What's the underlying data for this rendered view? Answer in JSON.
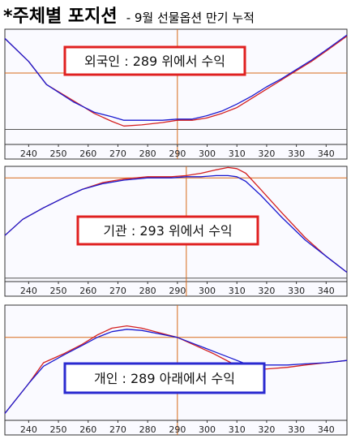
{
  "title": {
    "main": "*주체별 포지션",
    "sub": "- 9월 선물옵션 만기 누적"
  },
  "colors": {
    "series_a": "#d42020",
    "series_b": "#1a1ad0",
    "ref_line": "#d86a1a",
    "axis": "#333333",
    "plot_bg": "#fafaff",
    "box_red": "#e02020",
    "box_blue": "#2a2ad0"
  },
  "chart_data": [
    {
      "type": "line",
      "id": "foreign",
      "annotation": "외국인 : 289 위에서 수익",
      "annotation_style": "red",
      "xlim": [
        232,
        347
      ],
      "ylim": [
        0,
        100
      ],
      "x_ticks": [
        240,
        250,
        260,
        270,
        280,
        290,
        300,
        310,
        320,
        330,
        340
      ],
      "ref_x": 290,
      "ref_y": 62,
      "zero_y": 13,
      "series": [
        {
          "x": [
            232,
            240,
            246,
            255,
            262,
            268,
            272,
            278,
            285,
            290,
            295,
            300,
            305,
            310,
            315,
            320,
            325,
            330,
            335,
            340,
            347
          ],
          "y": [
            92,
            72,
            52,
            38,
            27,
            20,
            16,
            17,
            19,
            21,
            21,
            23,
            27,
            32,
            40,
            48,
            56,
            64,
            72,
            81,
            94
          ]
        },
        {
          "x": [
            232,
            240,
            246,
            255,
            262,
            268,
            272,
            278,
            285,
            290,
            295,
            300,
            305,
            310,
            315,
            320,
            325,
            330,
            335,
            340,
            347
          ],
          "y": [
            92,
            72,
            52,
            37,
            28,
            24,
            21,
            21,
            21,
            22,
            22,
            25,
            29,
            35,
            42,
            50,
            57,
            65,
            73,
            82,
            95
          ]
        }
      ]
    },
    {
      "type": "line",
      "id": "institution",
      "annotation": "기관 : 293 위에서 수익",
      "annotation_style": "red",
      "xlim": [
        232,
        347
      ],
      "ylim": [
        0,
        100
      ],
      "x_ticks": [
        240,
        250,
        260,
        270,
        280,
        290,
        300,
        310,
        320,
        330,
        340
      ],
      "ref_x": 293,
      "ref_y": 90,
      "zero_y": 3,
      "series": [
        {
          "x": [
            232,
            238,
            245,
            252,
            258,
            265,
            272,
            280,
            288,
            293,
            298,
            303,
            307,
            310,
            313,
            318,
            325,
            333,
            340,
            347
          ],
          "y": [
            40,
            54,
            64,
            73,
            80,
            86,
            89,
            91,
            91,
            92,
            94,
            97,
            99,
            98,
            94,
            80,
            60,
            38,
            22,
            8
          ]
        },
        {
          "x": [
            232,
            238,
            245,
            252,
            258,
            265,
            272,
            280,
            288,
            293,
            298,
            303,
            307,
            310,
            313,
            318,
            325,
            333,
            340,
            347
          ],
          "y": [
            40,
            54,
            64,
            73,
            80,
            85,
            88,
            90,
            90,
            91,
            91,
            92,
            92,
            91,
            87,
            75,
            56,
            36,
            22,
            8
          ]
        }
      ]
    },
    {
      "type": "line",
      "id": "individual",
      "annotation": "개인 : 289 아래에서 수익",
      "annotation_style": "blue",
      "xlim": [
        232,
        347
      ],
      "ylim": [
        0,
        100
      ],
      "x_ticks": [
        240,
        250,
        260,
        270,
        280,
        290,
        300,
        310,
        320,
        330,
        340
      ],
      "ref_x": 290,
      "ref_y": 72,
      "zero_y": -1,
      "series": [
        {
          "x": [
            232,
            240,
            245,
            252,
            258,
            263,
            268,
            273,
            278,
            284,
            290,
            296,
            302,
            308,
            312,
            317,
            322,
            327,
            333,
            340,
            347
          ],
          "y": [
            6,
            32,
            50,
            58,
            66,
            74,
            80,
            82,
            80,
            76,
            72,
            65,
            58,
            50,
            45,
            44,
            45,
            46,
            48,
            50,
            52
          ]
        },
        {
          "x": [
            232,
            240,
            245,
            252,
            258,
            263,
            268,
            273,
            278,
            284,
            290,
            296,
            302,
            308,
            312,
            317,
            322,
            327,
            333,
            340,
            347
          ],
          "y": [
            6,
            32,
            47,
            57,
            65,
            72,
            77,
            79,
            78,
            75,
            72,
            66,
            60,
            54,
            50,
            48,
            48,
            48,
            49,
            50,
            52
          ]
        }
      ]
    }
  ]
}
